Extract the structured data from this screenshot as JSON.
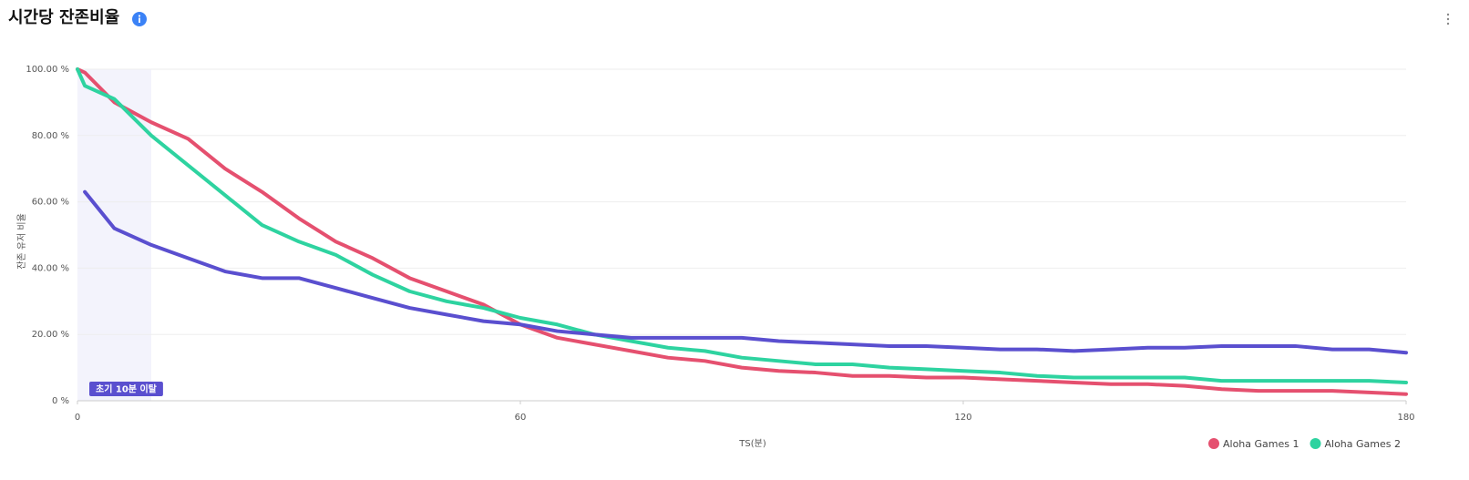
{
  "chart_data": {
    "type": "line",
    "title": "시간당 잔존비율",
    "x_label": "TS(분)",
    "y_label": "잔존 유저 비율",
    "x": [
      0,
      1,
      5,
      10,
      15,
      20,
      25,
      30,
      35,
      40,
      45,
      50,
      55,
      60,
      65,
      70,
      75,
      80,
      85,
      90,
      95,
      100,
      105,
      110,
      115,
      120,
      125,
      130,
      135,
      140,
      145,
      150,
      155,
      160,
      165,
      170,
      175,
      180
    ],
    "series": [
      {
        "name": "Aloha Games 1",
        "color": "#e5506f",
        "values": [
          100,
          99,
          90,
          84,
          79,
          70,
          63,
          55,
          48,
          43,
          37,
          33,
          29,
          23,
          19,
          17,
          15,
          13,
          12,
          10,
          9,
          8.5,
          7.5,
          7.5,
          7,
          7,
          6.5,
          6,
          5.5,
          5,
          5,
          4.5,
          3.5,
          3,
          3,
          3,
          2.5,
          2
        ]
      },
      {
        "name": "Aloha Games 2",
        "color": "#2ed3a0",
        "values": [
          100,
          95,
          91,
          80,
          71,
          62,
          53,
          48,
          44,
          38,
          33,
          30,
          28,
          25,
          23,
          20,
          18,
          16,
          15,
          13,
          12,
          11,
          11,
          10,
          9.5,
          9,
          8.5,
          7.5,
          7,
          7,
          7,
          7,
          6,
          6,
          6,
          6,
          6,
          5.5
        ]
      },
      {
        "color": "#5a4fcf",
        "values": [
          null,
          63,
          52,
          47,
          43,
          39,
          37,
          37,
          34,
          31,
          28,
          26,
          24,
          23,
          21,
          20,
          19,
          19,
          19,
          19,
          18,
          17.5,
          17,
          16.5,
          16.5,
          16,
          15.5,
          15.5,
          15,
          15.5,
          16,
          16,
          16.5,
          16.5,
          16.5,
          15.5,
          15.5,
          14.5
        ]
      }
    ],
    "xlim": [
      0,
      180
    ],
    "ylim": [
      0,
      100
    ],
    "xticks": [
      0,
      60,
      120,
      180
    ],
    "yticks": [
      {
        "value": 0,
        "label": "0 %"
      },
      {
        "value": 20,
        "label": "20.00 %"
      },
      {
        "value": 40,
        "label": "40.00 %"
      },
      {
        "value": 60,
        "label": "60.00 %"
      },
      {
        "value": 80,
        "label": "80.00 %"
      },
      {
        "value": 100,
        "label": "100.00 %"
      }
    ],
    "shaded_region": {
      "x": [
        0,
        10
      ],
      "label": "초기 10분 이탈",
      "color": "#5a4fcf"
    },
    "grid": true,
    "legend": "bottom-right"
  }
}
